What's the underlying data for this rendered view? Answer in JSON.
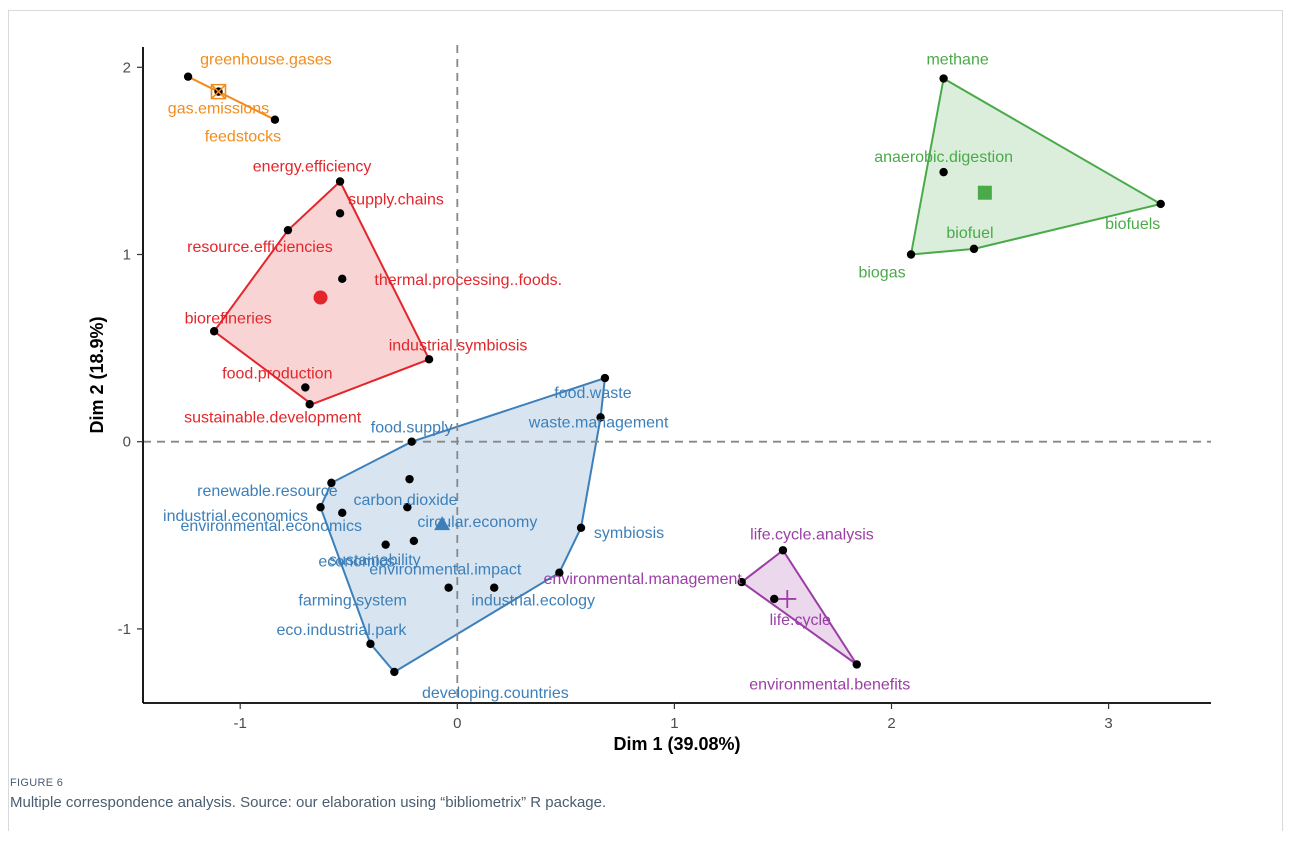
{
  "figure": {
    "label": "FIGURE 6",
    "caption": "Multiple correspondence analysis. Source: our elaboration using “bibliometrix” R package."
  },
  "chart_data": {
    "type": "scatter",
    "xlabel": "Dim 1 (39.08%)",
    "ylabel": "Dim 2 (18.9%)",
    "xlim": [
      -1.45,
      3.5
    ],
    "ylim": [
      -1.38,
      2.15
    ],
    "x_ticks": [
      -1,
      0,
      1,
      2,
      3
    ],
    "y_ticks": [
      -1,
      0,
      1,
      2
    ],
    "reference_lines": [
      {
        "axis": "x",
        "value": 0
      },
      {
        "axis": "y",
        "value": 0
      }
    ],
    "grid": false,
    "clusters": [
      {
        "color": "#f28c1c",
        "centroid": {
          "x": -1.1,
          "y": 1.87,
          "marker": "square-cross"
        },
        "hull": [
          -1.24,
          1.95,
          -0.84,
          1.72
        ],
        "points": [
          {
            "label": "greenhouse.gases",
            "x": -1.24,
            "y": 1.95
          },
          {
            "label": "gas.emissions",
            "x": -1.1,
            "y": 1.87
          },
          {
            "label": "feedstocks",
            "x": -0.84,
            "y": 1.72
          }
        ]
      },
      {
        "color": "#e3262b",
        "centroid": {
          "x": -0.63,
          "y": 0.77,
          "marker": "circle"
        },
        "hull": [
          -0.54,
          1.39,
          -0.13,
          0.44,
          -0.67,
          0.2,
          -1.12,
          0.59,
          -0.78,
          1.13
        ],
        "points": [
          {
            "label": "energy.efficiency",
            "x": -0.54,
            "y": 1.39
          },
          {
            "label": "supply.chains",
            "x": -0.54,
            "y": 1.22
          },
          {
            "label": "resource.efficiencies",
            "x": -0.78,
            "y": 1.13
          },
          {
            "label": "thermal.processing..foods.",
            "x": -0.53,
            "y": 0.87
          },
          {
            "label": "biorefineries",
            "x": -1.12,
            "y": 0.59
          },
          {
            "label": "industrial.symbiosis",
            "x": -0.13,
            "y": 0.44
          },
          {
            "label": "food.production",
            "x": -0.7,
            "y": 0.29
          },
          {
            "label": "sustainable.development",
            "x": -0.68,
            "y": 0.2
          }
        ]
      },
      {
        "color": "#3c7fb9",
        "centroid": {
          "x": -0.07,
          "y": -0.44,
          "marker": "triangle"
        },
        "hull": [
          0.68,
          0.34,
          0.66,
          0.13,
          0.57,
          -0.46,
          0.47,
          -0.7,
          -0.29,
          -1.23,
          -0.4,
          -1.08,
          -0.63,
          -0.35,
          -0.58,
          -0.22,
          -0.21,
          0.0
        ],
        "points": [
          {
            "label": "food.waste",
            "x": 0.68,
            "y": 0.34
          },
          {
            "label": "waste.management",
            "x": 0.66,
            "y": 0.13
          },
          {
            "label": "food.supply",
            "x": -0.21,
            "y": 0.0
          },
          {
            "label": "carbon.dioxide",
            "x": -0.22,
            "y": -0.2
          },
          {
            "label": "renewable.resource",
            "x": -0.58,
            "y": -0.22
          },
          {
            "label": "circular.economy",
            "x": -0.23,
            "y": -0.35
          },
          {
            "label": "industrial.economics",
            "x": -0.63,
            "y": -0.35
          },
          {
            "label": "environmental.economics",
            "x": -0.53,
            "y": -0.38
          },
          {
            "label": "sustainability",
            "x": -0.2,
            "y": -0.53
          },
          {
            "label": "symbiosis",
            "x": 0.57,
            "y": -0.46
          },
          {
            "label": "economics",
            "x": -0.33,
            "y": -0.55
          },
          {
            "label": "environmental.impact",
            "x": 0.47,
            "y": -0.7
          },
          {
            "label": "farming.system",
            "x": -0.04,
            "y": -0.78
          },
          {
            "label": "industrial.ecology",
            "x": 0.17,
            "y": -0.78
          },
          {
            "label": "eco.industrial.park",
            "x": -0.4,
            "y": -1.08
          },
          {
            "label": "developing.countries",
            "x": -0.29,
            "y": -1.23
          }
        ]
      },
      {
        "color": "#4aaa49",
        "centroid": {
          "x": 2.43,
          "y": 1.33,
          "marker": "square"
        },
        "hull": [
          2.24,
          1.94,
          3.24,
          1.27,
          2.38,
          1.03,
          2.09,
          1.0
        ],
        "points": [
          {
            "label": "methane",
            "x": 2.24,
            "y": 1.94
          },
          {
            "label": "anaerobic.digestion",
            "x": 2.24,
            "y": 1.44
          },
          {
            "label": "biofuels",
            "x": 3.24,
            "y": 1.27
          },
          {
            "label": "biofuel",
            "x": 2.38,
            "y": 1.03
          },
          {
            "label": "biogas",
            "x": 2.09,
            "y": 1.0
          }
        ]
      },
      {
        "color": "#9b3ea6",
        "centroid": {
          "x": 1.52,
          "y": -0.84,
          "marker": "plus"
        },
        "hull": [
          1.5,
          -0.58,
          1.84,
          -1.19,
          1.31,
          -0.75
        ],
        "points": [
          {
            "label": "life.cycle.analysis",
            "x": 1.5,
            "y": -0.58
          },
          {
            "label": "environmental.management",
            "x": 1.31,
            "y": -0.75
          },
          {
            "label": "life.cycle",
            "x": 1.46,
            "y": -0.84
          },
          {
            "label": "environmental.benefits",
            "x": 1.84,
            "y": -1.19
          }
        ]
      }
    ]
  }
}
